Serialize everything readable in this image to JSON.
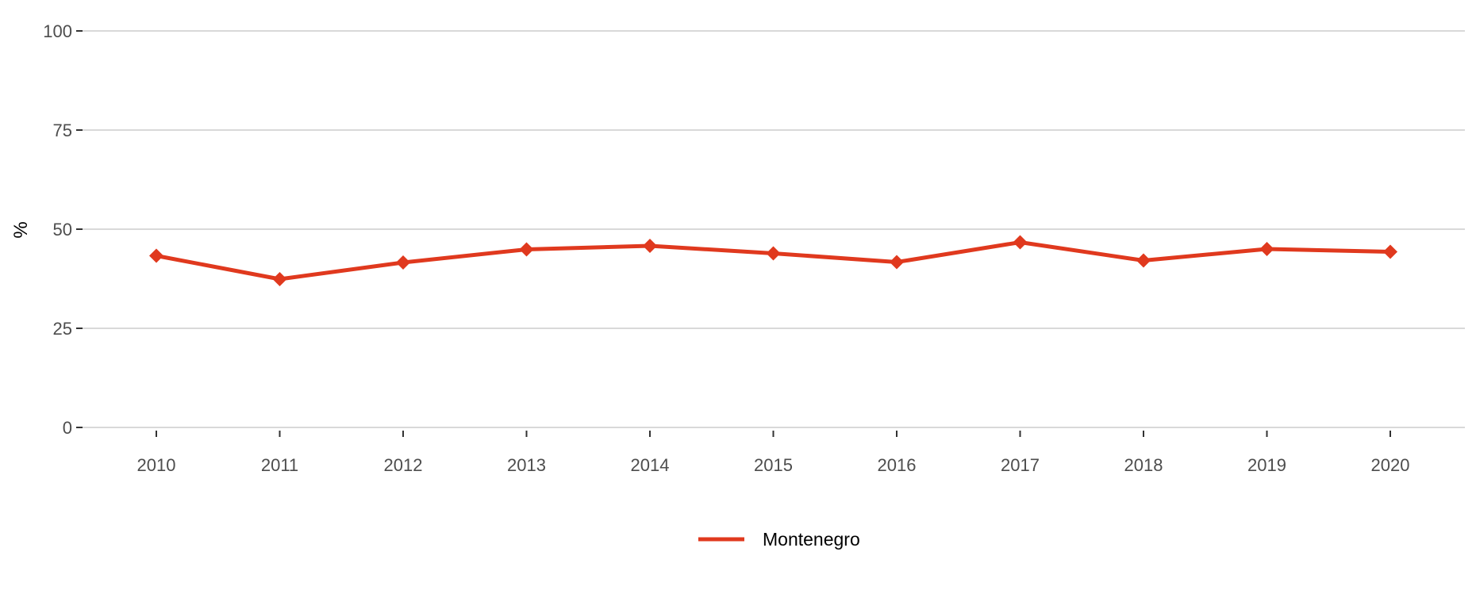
{
  "chart_data": {
    "type": "line",
    "title": "",
    "xlabel": "",
    "ylabel": "%",
    "ylim": [
      0,
      100
    ],
    "yticks": [
      0,
      25,
      50,
      75,
      100
    ],
    "categories": [
      "2010",
      "2011",
      "2012",
      "2013",
      "2014",
      "2015",
      "2016",
      "2017",
      "2018",
      "2019",
      "2020"
    ],
    "series": [
      {
        "name": "Montenegro",
        "color": "#e0391e",
        "marker": "diamond",
        "values": [
          43.3,
          37.4,
          41.6,
          44.9,
          45.8,
          43.9,
          41.7,
          46.7,
          42.1,
          45.0,
          44.3
        ]
      }
    ],
    "grid": "horizontal",
    "legend_position": "bottom"
  }
}
